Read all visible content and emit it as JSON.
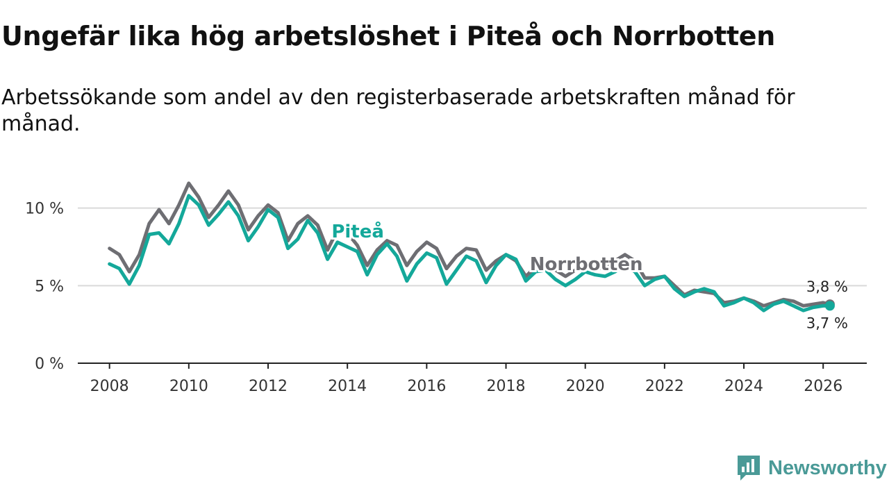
{
  "title": "Ungefär lika hög arbetslöshet i Piteå och Norrbotten",
  "subtitle": "Arbetssökande som andel av den registerbaserade arbetskraften månad för månad.",
  "brand": {
    "name": "Newsworthy",
    "icon": "newsworthy-logo-icon"
  },
  "colors": {
    "pitea": "#14a89a",
    "norrbotten": "#6e6e73",
    "grid": "#d9d9d9",
    "axis": "#222222",
    "brand": "#4a9a97"
  },
  "chart_data": {
    "type": "line",
    "title": "Ungefär lika hög arbetslöshet i Piteå och Norrbotten",
    "xlabel": "",
    "ylabel": "",
    "xlim": [
      2007.2,
      2027.1
    ],
    "ylim": [
      0,
      12
    ],
    "x_ticks": [
      2008,
      2010,
      2012,
      2014,
      2016,
      2018,
      2020,
      2022,
      2024,
      2026
    ],
    "x_tick_labels": [
      "2008",
      "2010",
      "2012",
      "2014",
      "2016",
      "2018",
      "2020",
      "2022",
      "2024",
      "2026"
    ],
    "y_ticks": [
      0,
      5,
      10
    ],
    "y_tick_labels": [
      "0 %",
      "5 %",
      "10 %"
    ],
    "grid": "horizontal",
    "series": [
      {
        "name": "Norrbotten",
        "label": "Norrbotten",
        "end_label": "3,8 %",
        "x": [
          2008.0,
          2008.25,
          2008.5,
          2008.75,
          2009.0,
          2009.25,
          2009.5,
          2009.75,
          2010.0,
          2010.25,
          2010.5,
          2010.75,
          2011.0,
          2011.25,
          2011.5,
          2011.75,
          2012.0,
          2012.25,
          2012.5,
          2012.75,
          2013.0,
          2013.25,
          2013.5,
          2013.75,
          2014.0,
          2014.25,
          2014.5,
          2014.75,
          2015.0,
          2015.25,
          2015.5,
          2015.75,
          2016.0,
          2016.25,
          2016.5,
          2016.75,
          2017.0,
          2017.25,
          2017.5,
          2017.75,
          2018.0,
          2018.25,
          2018.5,
          2018.75,
          2019.0,
          2019.25,
          2019.5,
          2019.75,
          2020.0,
          2020.25,
          2020.5,
          2020.75,
          2021.0,
          2021.25,
          2021.5,
          2021.75,
          2022.0,
          2022.25,
          2022.5,
          2022.75,
          2023.0,
          2023.25,
          2023.5,
          2023.75,
          2024.0,
          2024.25,
          2024.5,
          2024.75,
          2025.0,
          2025.25,
          2025.5,
          2025.75,
          2026.0,
          2026.17
        ],
        "values": [
          7.4,
          7.0,
          5.9,
          7.0,
          9.0,
          9.9,
          9.0,
          10.2,
          11.6,
          10.7,
          9.4,
          10.2,
          11.1,
          10.2,
          8.6,
          9.5,
          10.2,
          9.7,
          7.9,
          9.0,
          9.5,
          8.9,
          7.3,
          8.6,
          8.4,
          7.6,
          6.3,
          7.3,
          7.9,
          7.6,
          6.3,
          7.2,
          7.8,
          7.4,
          6.1,
          6.9,
          7.4,
          7.3,
          6.0,
          6.6,
          7.0,
          6.6,
          5.6,
          6.2,
          6.4,
          6.0,
          5.6,
          6.0,
          6.5,
          6.3,
          6.0,
          6.6,
          7.0,
          6.6,
          5.5,
          5.5,
          5.6,
          5.0,
          4.4,
          4.7,
          4.6,
          4.5,
          3.9,
          4.0,
          4.2,
          4.0,
          3.7,
          3.9,
          4.1,
          4.0,
          3.7,
          3.8,
          3.9,
          3.8
        ]
      },
      {
        "name": "Piteå",
        "label": "Piteå",
        "end_label": "3,7 %",
        "x": [
          2008.0,
          2008.25,
          2008.5,
          2008.75,
          2009.0,
          2009.25,
          2009.5,
          2009.75,
          2010.0,
          2010.25,
          2010.5,
          2010.75,
          2011.0,
          2011.25,
          2011.5,
          2011.75,
          2012.0,
          2012.25,
          2012.5,
          2012.75,
          2013.0,
          2013.25,
          2013.5,
          2013.75,
          2014.0,
          2014.25,
          2014.5,
          2014.75,
          2015.0,
          2015.25,
          2015.5,
          2015.75,
          2016.0,
          2016.25,
          2016.5,
          2016.75,
          2017.0,
          2017.25,
          2017.5,
          2017.75,
          2018.0,
          2018.25,
          2018.5,
          2018.75,
          2019.0,
          2019.25,
          2019.5,
          2019.75,
          2020.0,
          2020.25,
          2020.5,
          2020.75,
          2021.0,
          2021.25,
          2021.5,
          2021.75,
          2022.0,
          2022.25,
          2022.5,
          2022.75,
          2023.0,
          2023.25,
          2023.5,
          2023.75,
          2024.0,
          2024.25,
          2024.5,
          2024.75,
          2025.0,
          2025.25,
          2025.5,
          2025.75,
          2026.0,
          2026.17
        ],
        "values": [
          6.4,
          6.1,
          5.1,
          6.3,
          8.3,
          8.4,
          7.7,
          9.0,
          10.8,
          10.2,
          8.9,
          9.6,
          10.4,
          9.5,
          7.9,
          8.8,
          9.9,
          9.4,
          7.4,
          8.0,
          9.2,
          8.4,
          6.7,
          7.8,
          7.5,
          7.2,
          5.7,
          7.0,
          7.7,
          6.9,
          5.3,
          6.4,
          7.1,
          6.8,
          5.1,
          6.0,
          6.9,
          6.6,
          5.2,
          6.3,
          7.0,
          6.7,
          5.3,
          5.9,
          6.0,
          5.4,
          5.0,
          5.4,
          5.9,
          5.7,
          5.6,
          5.9,
          6.3,
          5.9,
          5.0,
          5.4,
          5.6,
          4.8,
          4.3,
          4.6,
          4.8,
          4.6,
          3.7,
          3.9,
          4.2,
          3.9,
          3.4,
          3.8,
          4.0,
          3.7,
          3.4,
          3.6,
          3.7,
          3.7
        ]
      }
    ]
  }
}
